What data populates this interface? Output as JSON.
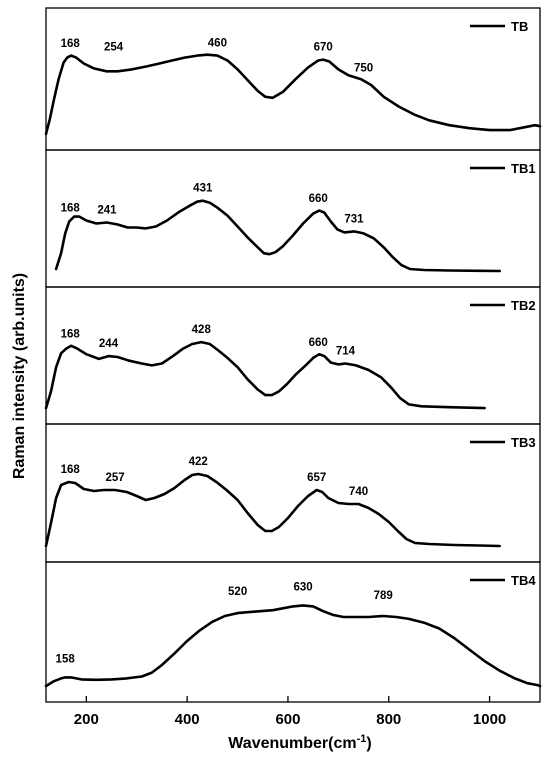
{
  "chart_data": {
    "type": "line",
    "xlabel": "Wavenumber(cm",
    "xlabel_superscript": "-1",
    "xlabel_suffix": ")",
    "ylabel": "Raman intensity (arb.units)",
    "xlim": [
      120,
      1100
    ],
    "xticks": [
      200,
      400,
      600,
      800,
      1000
    ],
    "grid": false,
    "legend_position": "top-right of each panel",
    "line_color": "#000000",
    "panels": [
      {
        "name": "TB",
        "peaks": [
          168,
          254,
          460,
          670,
          750
        ],
        "points": [
          [
            120,
            0.02
          ],
          [
            128,
            0.18
          ],
          [
            136,
            0.38
          ],
          [
            145,
            0.58
          ],
          [
            155,
            0.75
          ],
          [
            162,
            0.8
          ],
          [
            170,
            0.82
          ],
          [
            180,
            0.8
          ],
          [
            195,
            0.74
          ],
          [
            215,
            0.69
          ],
          [
            240,
            0.66
          ],
          [
            262,
            0.66
          ],
          [
            290,
            0.68
          ],
          [
            320,
            0.71
          ],
          [
            345,
            0.74
          ],
          [
            370,
            0.77
          ],
          [
            395,
            0.8
          ],
          [
            420,
            0.82
          ],
          [
            440,
            0.83
          ],
          [
            460,
            0.82
          ],
          [
            480,
            0.77
          ],
          [
            500,
            0.68
          ],
          [
            520,
            0.57
          ],
          [
            540,
            0.46
          ],
          [
            555,
            0.4
          ],
          [
            570,
            0.39
          ],
          [
            590,
            0.45
          ],
          [
            615,
            0.58
          ],
          [
            640,
            0.7
          ],
          [
            660,
            0.77
          ],
          [
            670,
            0.78
          ],
          [
            682,
            0.76
          ],
          [
            700,
            0.68
          ],
          [
            720,
            0.62
          ],
          [
            745,
            0.58
          ],
          [
            765,
            0.52
          ],
          [
            790,
            0.4
          ],
          [
            820,
            0.3
          ],
          [
            850,
            0.22
          ],
          [
            880,
            0.16
          ],
          [
            920,
            0.11
          ],
          [
            960,
            0.08
          ],
          [
            1000,
            0.06
          ],
          [
            1040,
            0.06
          ],
          [
            1070,
            0.09
          ],
          [
            1090,
            0.11
          ],
          [
            1100,
            0.1
          ]
        ]
      },
      {
        "name": "TB1",
        "peaks": [
          168,
          241,
          431,
          660,
          731
        ],
        "points": [
          [
            140,
            0.04
          ],
          [
            150,
            0.2
          ],
          [
            158,
            0.4
          ],
          [
            166,
            0.52
          ],
          [
            176,
            0.57
          ],
          [
            186,
            0.57
          ],
          [
            200,
            0.53
          ],
          [
            220,
            0.5
          ],
          [
            241,
            0.51
          ],
          [
            262,
            0.49
          ],
          [
            282,
            0.46
          ],
          [
            300,
            0.46
          ],
          [
            318,
            0.45
          ],
          [
            338,
            0.47
          ],
          [
            360,
            0.53
          ],
          [
            385,
            0.62
          ],
          [
            405,
            0.68
          ],
          [
            420,
            0.72
          ],
          [
            431,
            0.73
          ],
          [
            445,
            0.71
          ],
          [
            460,
            0.66
          ],
          [
            480,
            0.58
          ],
          [
            500,
            0.47
          ],
          [
            520,
            0.36
          ],
          [
            540,
            0.26
          ],
          [
            552,
            0.2
          ],
          [
            563,
            0.19
          ],
          [
            575,
            0.21
          ],
          [
            590,
            0.27
          ],
          [
            610,
            0.38
          ],
          [
            630,
            0.5
          ],
          [
            650,
            0.6
          ],
          [
            662,
            0.63
          ],
          [
            672,
            0.61
          ],
          [
            685,
            0.52
          ],
          [
            698,
            0.44
          ],
          [
            712,
            0.41
          ],
          [
            731,
            0.42
          ],
          [
            750,
            0.4
          ],
          [
            770,
            0.35
          ],
          [
            790,
            0.26
          ],
          [
            808,
            0.16
          ],
          [
            825,
            0.08
          ],
          [
            842,
            0.04
          ],
          [
            870,
            0.03
          ],
          [
            920,
            0.025
          ],
          [
            980,
            0.022
          ],
          [
            1020,
            0.02
          ]
        ]
      },
      {
        "name": "TB2",
        "peaks": [
          168,
          244,
          428,
          660,
          714
        ],
        "points": [
          [
            120,
            0.02
          ],
          [
            130,
            0.2
          ],
          [
            140,
            0.46
          ],
          [
            150,
            0.61
          ],
          [
            160,
            0.66
          ],
          [
            170,
            0.69
          ],
          [
            182,
            0.66
          ],
          [
            200,
            0.6
          ],
          [
            225,
            0.55
          ],
          [
            244,
            0.58
          ],
          [
            262,
            0.57
          ],
          [
            285,
            0.53
          ],
          [
            310,
            0.5
          ],
          [
            330,
            0.48
          ],
          [
            350,
            0.5
          ],
          [
            372,
            0.58
          ],
          [
            392,
            0.66
          ],
          [
            410,
            0.71
          ],
          [
            428,
            0.73
          ],
          [
            445,
            0.71
          ],
          [
            462,
            0.64
          ],
          [
            480,
            0.56
          ],
          [
            500,
            0.46
          ],
          [
            520,
            0.33
          ],
          [
            540,
            0.22
          ],
          [
            555,
            0.16
          ],
          [
            568,
            0.16
          ],
          [
            582,
            0.2
          ],
          [
            598,
            0.28
          ],
          [
            615,
            0.38
          ],
          [
            635,
            0.48
          ],
          [
            650,
            0.56
          ],
          [
            662,
            0.6
          ],
          [
            672,
            0.58
          ],
          [
            685,
            0.51
          ],
          [
            700,
            0.49
          ],
          [
            714,
            0.5
          ],
          [
            735,
            0.48
          ],
          [
            760,
            0.43
          ],
          [
            785,
            0.35
          ],
          [
            805,
            0.24
          ],
          [
            822,
            0.13
          ],
          [
            840,
            0.06
          ],
          [
            865,
            0.04
          ],
          [
            920,
            0.03
          ],
          [
            960,
            0.025
          ],
          [
            990,
            0.02
          ]
        ]
      },
      {
        "name": "TB3",
        "peaks": [
          168,
          257,
          422,
          657,
          740
        ],
        "points": [
          [
            120,
            0.02
          ],
          [
            130,
            0.25
          ],
          [
            140,
            0.5
          ],
          [
            150,
            0.63
          ],
          [
            165,
            0.66
          ],
          [
            178,
            0.65
          ],
          [
            195,
            0.59
          ],
          [
            215,
            0.57
          ],
          [
            235,
            0.58
          ],
          [
            257,
            0.58
          ],
          [
            280,
            0.56
          ],
          [
            300,
            0.52
          ],
          [
            318,
            0.48
          ],
          [
            335,
            0.5
          ],
          [
            355,
            0.54
          ],
          [
            375,
            0.6
          ],
          [
            395,
            0.68
          ],
          [
            410,
            0.73
          ],
          [
            422,
            0.74
          ],
          [
            440,
            0.72
          ],
          [
            458,
            0.66
          ],
          [
            478,
            0.58
          ],
          [
            500,
            0.48
          ],
          [
            520,
            0.35
          ],
          [
            540,
            0.23
          ],
          [
            555,
            0.17
          ],
          [
            568,
            0.17
          ],
          [
            582,
            0.21
          ],
          [
            600,
            0.3
          ],
          [
            620,
            0.42
          ],
          [
            640,
            0.52
          ],
          [
            657,
            0.58
          ],
          [
            668,
            0.56
          ],
          [
            680,
            0.5
          ],
          [
            700,
            0.45
          ],
          [
            720,
            0.44
          ],
          [
            740,
            0.44
          ],
          [
            760,
            0.4
          ],
          [
            780,
            0.34
          ],
          [
            800,
            0.26
          ],
          [
            818,
            0.17
          ],
          [
            835,
            0.09
          ],
          [
            852,
            0.05
          ],
          [
            880,
            0.04
          ],
          [
            930,
            0.03
          ],
          [
            980,
            0.025
          ],
          [
            1020,
            0.02
          ]
        ]
      },
      {
        "name": "TB4",
        "peaks": [
          158,
          520,
          630,
          789
        ],
        "points": [
          [
            120,
            0.02
          ],
          [
            135,
            0.07
          ],
          [
            150,
            0.1
          ],
          [
            158,
            0.11
          ],
          [
            170,
            0.11
          ],
          [
            190,
            0.09
          ],
          [
            220,
            0.085
          ],
          [
            250,
            0.09
          ],
          [
            280,
            0.1
          ],
          [
            310,
            0.12
          ],
          [
            330,
            0.16
          ],
          [
            350,
            0.24
          ],
          [
            375,
            0.36
          ],
          [
            400,
            0.49
          ],
          [
            425,
            0.6
          ],
          [
            450,
            0.69
          ],
          [
            475,
            0.75
          ],
          [
            500,
            0.78
          ],
          [
            520,
            0.79
          ],
          [
            545,
            0.8
          ],
          [
            570,
            0.81
          ],
          [
            590,
            0.83
          ],
          [
            610,
            0.85
          ],
          [
            630,
            0.86
          ],
          [
            650,
            0.85
          ],
          [
            670,
            0.8
          ],
          [
            690,
            0.76
          ],
          [
            710,
            0.74
          ],
          [
            735,
            0.74
          ],
          [
            760,
            0.74
          ],
          [
            789,
            0.75
          ],
          [
            815,
            0.74
          ],
          [
            840,
            0.72
          ],
          [
            870,
            0.68
          ],
          [
            900,
            0.62
          ],
          [
            930,
            0.52
          ],
          [
            960,
            0.4
          ],
          [
            990,
            0.28
          ],
          [
            1020,
            0.18
          ],
          [
            1050,
            0.1
          ],
          [
            1075,
            0.05
          ],
          [
            1095,
            0.03
          ],
          [
            1100,
            0.02
          ]
        ]
      }
    ]
  }
}
